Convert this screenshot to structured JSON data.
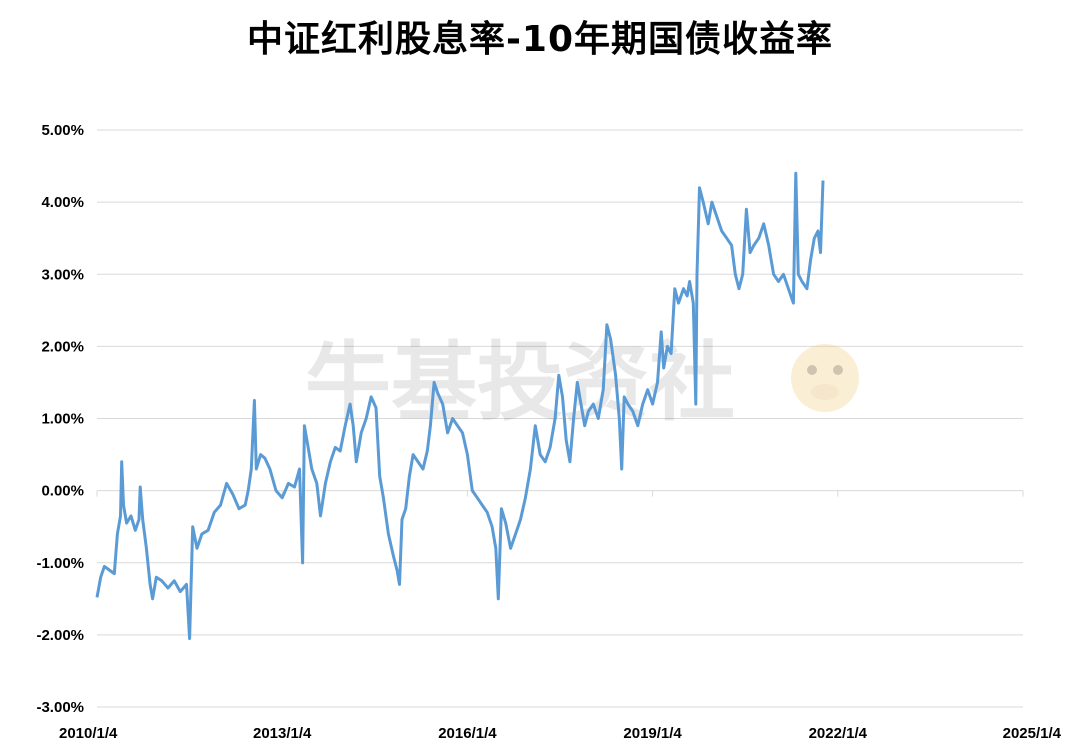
{
  "title": "中证红利股息率-10年期国债收益率",
  "watermark": "牛基投资社",
  "colors": {
    "line": "#5b9bd5",
    "grid": "#d9d9d9"
  },
  "chart_data": {
    "type": "line",
    "title": "中证红利股息率-10年期国债收益率",
    "xlabel": "",
    "ylabel": "",
    "grid": true,
    "legend": "none",
    "ylim": [
      -3.0,
      5.0
    ],
    "y_ticks": [
      "5.00%",
      "4.00%",
      "3.00%",
      "2.00%",
      "1.00%",
      "0.00%",
      "-1.00%",
      "-2.00%",
      "-3.00%"
    ],
    "x_range": [
      2010.0,
      2025.0
    ],
    "x_ticks": [
      {
        "x": 2010.0,
        "label": "2010/1/4"
      },
      {
        "x": 2013.0,
        "label": "2013/1/4"
      },
      {
        "x": 2016.0,
        "label": "2016/1/4"
      },
      {
        "x": 2019.0,
        "label": "2019/1/4"
      },
      {
        "x": 2022.0,
        "label": "2022/1/4"
      },
      {
        "x": 2025.0,
        "label": "2025/1/4"
      }
    ],
    "series": [
      {
        "values": [
          [
            2010.0,
            -1.48
          ],
          [
            2010.06,
            -1.2
          ],
          [
            2010.12,
            -1.05
          ],
          [
            2010.2,
            -1.1
          ],
          [
            2010.28,
            -1.15
          ],
          [
            2010.33,
            -0.6
          ],
          [
            2010.38,
            -0.35
          ],
          [
            2010.4,
            0.4
          ],
          [
            2010.43,
            -0.2
          ],
          [
            2010.48,
            -0.45
          ],
          [
            2010.55,
            -0.35
          ],
          [
            2010.62,
            -0.55
          ],
          [
            2010.68,
            -0.4
          ],
          [
            2010.7,
            0.05
          ],
          [
            2010.74,
            -0.4
          ],
          [
            2010.8,
            -0.8
          ],
          [
            2010.86,
            -1.3
          ],
          [
            2010.9,
            -1.5
          ],
          [
            2010.96,
            -1.2
          ],
          [
            2011.05,
            -1.25
          ],
          [
            2011.15,
            -1.35
          ],
          [
            2011.25,
            -1.25
          ],
          [
            2011.35,
            -1.4
          ],
          [
            2011.45,
            -1.3
          ],
          [
            2011.5,
            -2.05
          ],
          [
            2011.55,
            -0.5
          ],
          [
            2011.62,
            -0.8
          ],
          [
            2011.7,
            -0.6
          ],
          [
            2011.8,
            -0.55
          ],
          [
            2011.9,
            -0.3
          ],
          [
            2012.0,
            -0.2
          ],
          [
            2012.1,
            0.1
          ],
          [
            2012.2,
            -0.05
          ],
          [
            2012.3,
            -0.25
          ],
          [
            2012.4,
            -0.2
          ],
          [
            2012.45,
            0.0
          ],
          [
            2012.5,
            0.3
          ],
          [
            2012.55,
            1.25
          ],
          [
            2012.58,
            0.3
          ],
          [
            2012.65,
            0.5
          ],
          [
            2012.72,
            0.45
          ],
          [
            2012.8,
            0.3
          ],
          [
            2012.9,
            0.0
          ],
          [
            2013.0,
            -0.1
          ],
          [
            2013.1,
            0.1
          ],
          [
            2013.2,
            0.05
          ],
          [
            2013.28,
            0.3
          ],
          [
            2013.33,
            -1.0
          ],
          [
            2013.36,
            0.9
          ],
          [
            2013.4,
            0.7
          ],
          [
            2013.48,
            0.3
          ],
          [
            2013.56,
            0.1
          ],
          [
            2013.62,
            -0.35
          ],
          [
            2013.7,
            0.1
          ],
          [
            2013.78,
            0.4
          ],
          [
            2013.86,
            0.6
          ],
          [
            2013.94,
            0.55
          ],
          [
            2014.02,
            0.9
          ],
          [
            2014.1,
            1.2
          ],
          [
            2014.15,
            0.9
          ],
          [
            2014.2,
            0.4
          ],
          [
            2014.28,
            0.8
          ],
          [
            2014.36,
            1.0
          ],
          [
            2014.44,
            1.3
          ],
          [
            2014.52,
            1.15
          ],
          [
            2014.58,
            0.2
          ],
          [
            2014.64,
            -0.1
          ],
          [
            2014.72,
            -0.6
          ],
          [
            2014.8,
            -0.9
          ],
          [
            2014.86,
            -1.1
          ],
          [
            2014.9,
            -1.3
          ],
          [
            2014.94,
            -0.4
          ],
          [
            2015.0,
            -0.25
          ],
          [
            2015.06,
            0.2
          ],
          [
            2015.12,
            0.5
          ],
          [
            2015.2,
            0.4
          ],
          [
            2015.28,
            0.3
          ],
          [
            2015.35,
            0.55
          ],
          [
            2015.4,
            0.9
          ],
          [
            2015.46,
            1.5
          ],
          [
            2015.52,
            1.35
          ],
          [
            2015.6,
            1.2
          ],
          [
            2015.68,
            0.8
          ],
          [
            2015.76,
            1.0
          ],
          [
            2015.84,
            0.9
          ],
          [
            2015.92,
            0.8
          ],
          [
            2016.0,
            0.5
          ],
          [
            2016.08,
            0.0
          ],
          [
            2016.16,
            -0.1
          ],
          [
            2016.24,
            -0.2
          ],
          [
            2016.32,
            -0.3
          ],
          [
            2016.4,
            -0.5
          ],
          [
            2016.46,
            -0.8
          ],
          [
            2016.5,
            -1.5
          ],
          [
            2016.55,
            -0.25
          ],
          [
            2016.62,
            -0.45
          ],
          [
            2016.7,
            -0.8
          ],
          [
            2016.78,
            -0.6
          ],
          [
            2016.86,
            -0.4
          ],
          [
            2016.94,
            -0.1
          ],
          [
            2017.02,
            0.3
          ],
          [
            2017.1,
            0.9
          ],
          [
            2017.18,
            0.5
          ],
          [
            2017.26,
            0.4
          ],
          [
            2017.34,
            0.6
          ],
          [
            2017.42,
            1.0
          ],
          [
            2017.48,
            1.6
          ],
          [
            2017.54,
            1.3
          ],
          [
            2017.6,
            0.7
          ],
          [
            2017.66,
            0.4
          ],
          [
            2017.72,
            1.0
          ],
          [
            2017.78,
            1.5
          ],
          [
            2017.84,
            1.2
          ],
          [
            2017.9,
            0.9
          ],
          [
            2017.96,
            1.1
          ],
          [
            2018.04,
            1.2
          ],
          [
            2018.12,
            1.0
          ],
          [
            2018.2,
            1.4
          ],
          [
            2018.26,
            2.3
          ],
          [
            2018.32,
            2.1
          ],
          [
            2018.4,
            1.6
          ],
          [
            2018.46,
            1.0
          ],
          [
            2018.5,
            0.3
          ],
          [
            2018.54,
            1.3
          ],
          [
            2018.6,
            1.2
          ],
          [
            2018.68,
            1.1
          ],
          [
            2018.76,
            0.9
          ],
          [
            2018.84,
            1.2
          ],
          [
            2018.92,
            1.4
          ],
          [
            2019.0,
            1.2
          ],
          [
            2019.08,
            1.5
          ],
          [
            2019.14,
            2.2
          ],
          [
            2019.18,
            1.7
          ],
          [
            2019.24,
            2.0
          ],
          [
            2019.3,
            1.9
          ],
          [
            2019.36,
            2.8
          ],
          [
            2019.42,
            2.6
          ],
          [
            2019.5,
            2.8
          ],
          [
            2019.56,
            2.7
          ],
          [
            2019.6,
            2.9
          ],
          [
            2019.66,
            2.6
          ],
          [
            2019.7,
            1.2
          ],
          [
            2019.72,
            3.0
          ],
          [
            2019.76,
            4.2
          ],
          [
            2019.82,
            4.0
          ],
          [
            2019.9,
            3.7
          ],
          [
            2019.96,
            4.0
          ],
          [
            2020.04,
            3.8
          ],
          [
            2020.12,
            3.6
          ],
          [
            2020.2,
            3.5
          ],
          [
            2020.28,
            3.4
          ],
          [
            2020.34,
            3.0
          ],
          [
            2020.4,
            2.8
          ],
          [
            2020.46,
            3.0
          ],
          [
            2020.52,
            3.9
          ],
          [
            2020.58,
            3.3
          ],
          [
            2020.64,
            3.4
          ],
          [
            2020.72,
            3.5
          ],
          [
            2020.8,
            3.7
          ],
          [
            2020.88,
            3.4
          ],
          [
            2020.96,
            3.0
          ],
          [
            2021.04,
            2.9
          ],
          [
            2021.12,
            3.0
          ],
          [
            2021.2,
            2.8
          ],
          [
            2021.28,
            2.6
          ],
          [
            2021.32,
            4.4
          ],
          [
            2021.36,
            3.0
          ],
          [
            2021.42,
            2.9
          ],
          [
            2021.5,
            2.8
          ],
          [
            2021.56,
            3.2
          ],
          [
            2021.62,
            3.5
          ],
          [
            2021.68,
            3.6
          ],
          [
            2021.72,
            3.3
          ],
          [
            2021.76,
            4.3
          ]
        ]
      }
    ]
  }
}
